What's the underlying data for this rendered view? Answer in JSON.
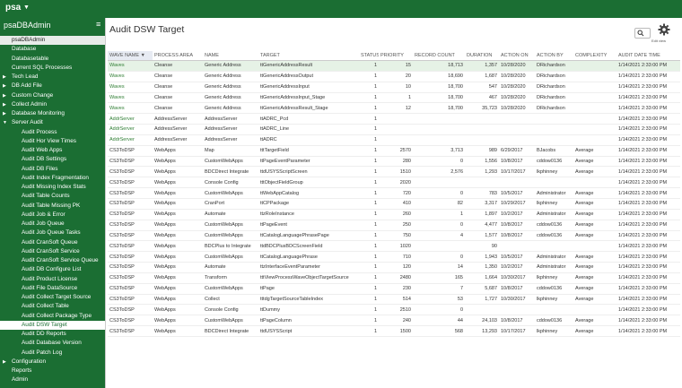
{
  "header": {
    "logo": "psa",
    "app_menu": "▼"
  },
  "sidebar": {
    "title": "psaDBAdmin",
    "menu_icon": "≡",
    "items": [
      {
        "label": "psaDBAdmin",
        "level": 0,
        "state": "current"
      },
      {
        "label": "Database",
        "level": 0
      },
      {
        "label": "Databasetable",
        "level": 0
      },
      {
        "label": "Current SQL Processes",
        "level": 0
      },
      {
        "label": "Tech Lead",
        "level": 0,
        "arrow": "▶"
      },
      {
        "label": "DB Add File",
        "level": 0,
        "arrow": "▶"
      },
      {
        "label": "Custom Change",
        "level": 0,
        "arrow": "▶"
      },
      {
        "label": "Collect Admin",
        "level": 0,
        "arrow": "▶"
      },
      {
        "label": "Database Monitoring",
        "level": 0,
        "arrow": "▶"
      },
      {
        "label": "Server Audit",
        "level": 0,
        "arrow": "▼"
      },
      {
        "label": "Audit Process",
        "level": 1
      },
      {
        "label": "Audit Hor View Times",
        "level": 1
      },
      {
        "label": "Audit Web Apps",
        "level": 1
      },
      {
        "label": "Audit DB Settings",
        "level": 1
      },
      {
        "label": "Audit DB Files",
        "level": 1
      },
      {
        "label": "Audit Index Fragmentation",
        "level": 1
      },
      {
        "label": "Audit Missing Index Stats",
        "level": 1
      },
      {
        "label": "Audit Table Counts",
        "level": 1
      },
      {
        "label": "Audit Table Missing PK",
        "level": 1
      },
      {
        "label": "Audit Job & Error",
        "level": 1
      },
      {
        "label": "Audit Job Queue",
        "level": 1
      },
      {
        "label": "Audit Job Queue Tasks",
        "level": 1
      },
      {
        "label": "Audit CranSoft Queue",
        "level": 1
      },
      {
        "label": "Audit CranSoft Service",
        "level": 1
      },
      {
        "label": "Audit CranSoft Service Queue",
        "level": 1
      },
      {
        "label": "Audit DB Configure List",
        "level": 1
      },
      {
        "label": "Audit Product License",
        "level": 1
      },
      {
        "label": "Audit File DataSource",
        "level": 1
      },
      {
        "label": "Audit Collect Target Source",
        "level": 1
      },
      {
        "label": "Audit Collect Table",
        "level": 1
      },
      {
        "label": "Audit Collect Package Type",
        "level": 1
      },
      {
        "label": "Audit DSW Target",
        "level": 1,
        "state": "selected"
      },
      {
        "label": "Audit DD Reports",
        "level": 1
      },
      {
        "label": "Audit Database Version",
        "level": 1
      },
      {
        "label": "Audit Patch Log",
        "level": 1
      },
      {
        "label": "Configuration",
        "level": 0,
        "arrow": "▶"
      },
      {
        "label": "Reports",
        "level": 0
      },
      {
        "label": "Admin",
        "level": 0
      }
    ]
  },
  "page": {
    "title": "Audit DSW Target",
    "settings_label": "Edit view"
  },
  "table": {
    "columns": [
      "WAVE NAME ▼",
      "PROCESS AREA",
      "NAME",
      "TARGET",
      "STATUS",
      "PRIORITY",
      "RECORD COUNT",
      "DURATION",
      "ACTION ON",
      "ACTION BY",
      "COMPLEXITY",
      "AUDIT DATE TIME"
    ],
    "rows": [
      [
        "Waves",
        "Cleanse",
        "Generic Address",
        "ttGenericAddressResult",
        "1",
        "15",
        "18,713",
        "1,357",
        "10/28/2020",
        "DRichardson",
        null,
        "1/14/2021 2:33:00 PM"
      ],
      [
        "Waves",
        "Cleanse",
        "Generic Address",
        "ttGenericAddressOutput",
        "1",
        "20",
        "18,690",
        "1,687",
        "10/28/2020",
        "DRichardson",
        null,
        "1/14/2021 2:33:00 PM"
      ],
      [
        "Waves",
        "Cleanse",
        "Generic Address",
        "ttGenericAddressInput",
        "1",
        "10",
        "18,700",
        "547",
        "10/28/2020",
        "DRichardson",
        null,
        "1/14/2021 2:33:00 PM"
      ],
      [
        "Waves",
        "Cleanse",
        "Generic Address",
        "ttGenericAddressInput_Stage",
        "1",
        "1",
        "18,700",
        "467",
        "10/28/2020",
        "DRichardson",
        null,
        "1/14/2021 2:33:00 PM"
      ],
      [
        "Waves",
        "Cleanse",
        "Generic Address",
        "ttGenericAddressResult_Stage",
        "1",
        "12",
        "18,700",
        "35,723",
        "10/28/2020",
        "DRichardson",
        null,
        "1/14/2021 2:33:00 PM"
      ],
      [
        "AddrServer",
        "AddressServer",
        "AddressServer",
        "ttADRC_Pcd",
        "1",
        null,
        null,
        null,
        null,
        null,
        null,
        "1/14/2021 2:33:00 PM"
      ],
      [
        "AddrServer",
        "AddressServer",
        "AddressServer",
        "ttADRC_Line",
        "1",
        null,
        null,
        null,
        null,
        null,
        null,
        "1/14/2021 2:33:00 PM"
      ],
      [
        "AddrServer",
        "AddressServer",
        "AddressServer",
        "ttADRC",
        "1",
        null,
        null,
        null,
        null,
        null,
        null,
        "1/14/2021 2:33:00 PM"
      ],
      [
        "CS3ToDSP",
        "WebApps",
        "Map",
        "tttTargetField",
        "1",
        "2570",
        "3,713",
        "989",
        "6/29/2017",
        "BJacobs",
        "Average",
        "1/14/2021 2:33:00 PM"
      ],
      [
        "CS3ToDSP",
        "WebApps",
        "CustomWebApps",
        "ttPageEventParameter",
        "1",
        "280",
        "0",
        "1,556",
        "10/8/2017",
        "cddow0136",
        "Average",
        "1/14/2021 2:33:00 PM"
      ],
      [
        "CS3ToDSP",
        "WebApps",
        "BDCDirect Integrate",
        "ttdUSYSScriptScreen",
        "1",
        "1510",
        "2,576",
        "1,293",
        "10/17/2017",
        "lkphinney",
        "Average",
        "1/14/2021 2:33:00 PM"
      ],
      [
        "CS3ToDSP",
        "WebApps",
        "Console Config",
        "tttObjectFieldGroup",
        "1",
        "2020",
        null,
        null,
        null,
        null,
        null,
        "1/14/2021 2:33:00 PM"
      ],
      [
        "CS3ToDSP",
        "WebApps",
        "CustomWebApps",
        "ttWebAppCatalog",
        "1",
        "720",
        "0",
        "783",
        "10/5/2017",
        "Administrator",
        "Average",
        "1/14/2021 2:33:00 PM"
      ],
      [
        "CS3ToDSP",
        "WebApps",
        "CranPort",
        "ttCPPackage",
        "1",
        "410",
        "82",
        "3,317",
        "10/29/2017",
        "lkphinney",
        "Average",
        "1/14/2021 2:33:00 PM"
      ],
      [
        "CS3ToDSP",
        "WebApps",
        "Automate",
        "ttzRoleInstance",
        "1",
        "260",
        "1",
        "1,897",
        "10/2/2017",
        "Administrator",
        "Average",
        "1/14/2021 2:33:00 PM"
      ],
      [
        "CS3ToDSP",
        "WebApps",
        "CustomWebApps",
        "ttPageEvent",
        "1",
        "250",
        "0",
        "4,477",
        "10/8/2017",
        "cddow0136",
        "Average",
        "1/14/2021 2:33:00 PM"
      ],
      [
        "CS3ToDSP",
        "WebApps",
        "CustomWebApps",
        "ttCatalogLanguagePhrasePage",
        "1",
        "750",
        "4",
        "1,577",
        "10/8/2017",
        "cddow0136",
        "Average",
        "1/14/2021 2:33:00 PM"
      ],
      [
        "CS3ToDSP",
        "WebApps",
        "BDCPlus to Integrate",
        "ttdBDCPlusBDCScreenField",
        "1",
        "1020",
        null,
        "90",
        null,
        null,
        null,
        "1/14/2021 2:33:00 PM"
      ],
      [
        "CS3ToDSP",
        "WebApps",
        "CustomWebApps",
        "ttCatalogLanguagePhrase",
        "1",
        "710",
        "0",
        "1,943",
        "10/5/2017",
        "Administrator",
        "Average",
        "1/14/2021 2:33:00 PM"
      ],
      [
        "CS3ToDSP",
        "WebApps",
        "Automate",
        "ttzInterfaceEventParameter",
        "1",
        "120",
        "14",
        "1,350",
        "10/2/2017",
        "Administrator",
        "Average",
        "1/14/2021 2:33:00 PM"
      ],
      [
        "CS3ToDSP",
        "WebApps",
        "Transform",
        "tttViewProcessWaveObjectTargetSource",
        "1",
        "2480",
        "165",
        "1,664",
        "10/30/2017",
        "lkphinney",
        "Average",
        "1/14/2021 2:33:00 PM"
      ],
      [
        "CS3ToDSP",
        "WebApps",
        "CustomWebApps",
        "ttPage",
        "1",
        "230",
        "7",
        "5,687",
        "10/8/2017",
        "cddow0136",
        "Average",
        "1/14/2021 2:33:00 PM"
      ],
      [
        "CS3ToDSP",
        "WebApps",
        "Collect",
        "tttdgTargetSourceTableIndex",
        "1",
        "514",
        "53",
        "1,727",
        "10/30/2017",
        "lkphinney",
        "Average",
        "1/14/2021 2:33:00 PM"
      ],
      [
        "CS3ToDSP",
        "WebApps",
        "Console Config",
        "ttDummy",
        "1",
        "2510",
        "0",
        null,
        null,
        null,
        null,
        "1/14/2021 2:33:00 PM"
      ],
      [
        "CS3ToDSP",
        "WebApps",
        "CustomWebApps",
        "ttPageColumn",
        "1",
        "240",
        "44",
        "24,103",
        "10/8/2017",
        "cddow0136",
        "Average",
        "1/14/2021 2:33:00 PM"
      ],
      [
        "CS3ToDSP",
        "WebApps",
        "BDCDirect Integrate",
        "ttdUSYSScript",
        "1",
        "1500",
        "568",
        "13,293",
        "10/17/2017",
        "lkphinney",
        "Average",
        "1/14/2021 2:33:00 PM"
      ]
    ]
  }
}
